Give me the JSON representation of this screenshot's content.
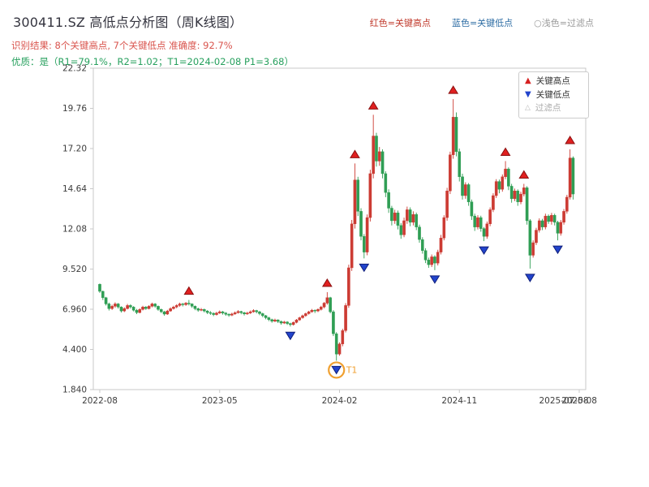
{
  "header": {
    "title": "300411.SZ 高低点分析图（周K线图）",
    "legend_high": "红色=关键高点",
    "legend_low": "蓝色=关键低点",
    "legend_filter": "○浅色=过滤点",
    "result_line": "识别结果: 8个关键高点, 7个关键低点   准确度: 92.7%",
    "quality_line": "优质：是（R1=79.1%，R2=1.02；T1=2024-02-08 P1=3.68）"
  },
  "plot_legend": {
    "high_label": "关键高点",
    "low_label": "关键低点",
    "filter_label": "过滤点"
  },
  "colors": {
    "up": "#cc3b33",
    "down": "#2f9e54",
    "marker_high": "#e02020",
    "marker_high_edge": "#8b1010",
    "marker_low": "#2244cc",
    "marker_low_edge": "#101f7a",
    "t1": "#f0a030",
    "axis_border": "#c9c9c9",
    "tick_text": "#3c3c3c",
    "title_text": "#34343f",
    "result_text": "#d9544d",
    "quality_text": "#27a05e"
  },
  "chart_data": {
    "type": "candlestick",
    "title": "300411.SZ 高低点分析图（周K线图）",
    "symbol": "300411.SZ",
    "timeframe": "weekly",
    "xlabel": "",
    "ylabel": "",
    "ylim": [
      1.84,
      22.32
    ],
    "y_ticks": [
      1.84,
      4.4,
      6.96,
      9.52,
      12.08,
      14.64,
      17.2,
      19.76,
      22.32
    ],
    "y_tick_labels": [
      "1.840",
      "4.400",
      "6.960",
      "9.520",
      "12.08",
      "14.64",
      "17.20",
      "19.76",
      "22.32"
    ],
    "x_tick_weeks": [
      0,
      39,
      78,
      117,
      156
    ],
    "x_tick_labels": [
      "2022-08",
      "2023-05",
      "2024-02",
      "2024-11",
      "2025-08"
    ],
    "x_extra_label": "2025-07-08",
    "legend_position": "upper-right-inside",
    "grid": false,
    "candles": [
      [
        8.55,
        8.6,
        8.0,
        8.1
      ],
      [
        8.1,
        8.15,
        7.55,
        7.7
      ],
      [
        7.7,
        7.75,
        7.2,
        7.3
      ],
      [
        7.3,
        7.38,
        6.88,
        7.0
      ],
      [
        7.0,
        7.25,
        6.92,
        7.15
      ],
      [
        7.15,
        7.4,
        7.05,
        7.3
      ],
      [
        7.3,
        7.36,
        7.0,
        7.1
      ],
      [
        7.1,
        7.15,
        6.75,
        6.85
      ],
      [
        6.85,
        7.08,
        6.78,
        7.0
      ],
      [
        7.0,
        7.3,
        6.95,
        7.2
      ],
      [
        7.2,
        7.28,
        7.0,
        7.1
      ],
      [
        7.1,
        7.16,
        6.82,
        6.9
      ],
      [
        6.9,
        6.98,
        6.65,
        6.75
      ],
      [
        6.75,
        7.02,
        6.7,
        6.95
      ],
      [
        6.95,
        7.18,
        6.88,
        7.1
      ],
      [
        7.1,
        7.16,
        6.92,
        7.0
      ],
      [
        7.0,
        7.22,
        6.95,
        7.15
      ],
      [
        7.15,
        7.38,
        7.08,
        7.3
      ],
      [
        7.3,
        7.35,
        7.06,
        7.15
      ],
      [
        7.15,
        7.2,
        6.86,
        6.95
      ],
      [
        6.95,
        7.0,
        6.72,
        6.8
      ],
      [
        6.8,
        6.86,
        6.55,
        6.65
      ],
      [
        6.65,
        6.92,
        6.6,
        6.85
      ],
      [
        6.85,
        7.08,
        6.8,
        7.0
      ],
      [
        7.0,
        7.18,
        6.94,
        7.1
      ],
      [
        7.1,
        7.28,
        7.02,
        7.2
      ],
      [
        7.2,
        7.38,
        7.12,
        7.3
      ],
      [
        7.3,
        7.36,
        7.14,
        7.25
      ],
      [
        7.25,
        7.42,
        7.18,
        7.35
      ],
      [
        7.35,
        7.55,
        7.2,
        7.3
      ],
      [
        7.3,
        7.34,
        7.05,
        7.15
      ],
      [
        7.15,
        7.2,
        6.9,
        7.0
      ],
      [
        7.0,
        7.06,
        6.8,
        6.9
      ],
      [
        6.9,
        7.04,
        6.84,
        6.95
      ],
      [
        6.95,
        7.0,
        6.76,
        6.85
      ],
      [
        6.85,
        6.9,
        6.65,
        6.75
      ],
      [
        6.75,
        6.84,
        6.6,
        6.7
      ],
      [
        6.7,
        6.76,
        6.52,
        6.62
      ],
      [
        6.62,
        6.8,
        6.56,
        6.72
      ],
      [
        6.72,
        6.88,
        6.66,
        6.8
      ],
      [
        6.8,
        6.85,
        6.62,
        6.72
      ],
      [
        6.72,
        6.78,
        6.54,
        6.64
      ],
      [
        6.64,
        6.7,
        6.48,
        6.58
      ],
      [
        6.58,
        6.74,
        6.52,
        6.66
      ],
      [
        6.66,
        6.82,
        6.6,
        6.74
      ],
      [
        6.74,
        6.9,
        6.68,
        6.82
      ],
      [
        6.82,
        6.86,
        6.64,
        6.74
      ],
      [
        6.74,
        6.8,
        6.56,
        6.66
      ],
      [
        6.66,
        6.8,
        6.6,
        6.72
      ],
      [
        6.72,
        6.88,
        6.66,
        6.8
      ],
      [
        6.8,
        6.96,
        6.74,
        6.88
      ],
      [
        6.88,
        6.92,
        6.7,
        6.8
      ],
      [
        6.8,
        6.85,
        6.58,
        6.68
      ],
      [
        6.68,
        6.74,
        6.45,
        6.55
      ],
      [
        6.55,
        6.6,
        6.32,
        6.42
      ],
      [
        6.42,
        6.48,
        6.2,
        6.3
      ],
      [
        6.3,
        6.36,
        6.1,
        6.2
      ],
      [
        6.2,
        6.36,
        6.14,
        6.28
      ],
      [
        6.28,
        6.32,
        6.08,
        6.18
      ],
      [
        6.18,
        6.24,
        5.98,
        6.08
      ],
      [
        6.08,
        6.22,
        6.02,
        6.15
      ],
      [
        6.15,
        6.2,
        5.96,
        6.05
      ],
      [
        6.05,
        6.1,
        5.86,
        5.98
      ],
      [
        5.98,
        6.18,
        5.92,
        6.12
      ],
      [
        6.12,
        6.34,
        6.06,
        6.28
      ],
      [
        6.28,
        6.48,
        6.22,
        6.42
      ],
      [
        6.42,
        6.62,
        6.36,
        6.55
      ],
      [
        6.55,
        6.74,
        6.48,
        6.68
      ],
      [
        6.68,
        6.86,
        6.62,
        6.8
      ],
      [
        6.8,
        6.98,
        6.74,
        6.9
      ],
      [
        6.9,
        6.95,
        6.72,
        6.85
      ],
      [
        6.85,
        7.02,
        6.78,
        6.95
      ],
      [
        6.95,
        7.18,
        6.88,
        7.1
      ],
      [
        7.1,
        7.42,
        7.02,
        7.35
      ],
      [
        7.35,
        8.05,
        7.25,
        7.7
      ],
      [
        7.7,
        7.75,
        6.7,
        6.8
      ],
      [
        6.8,
        6.9,
        5.25,
        5.4
      ],
      [
        5.4,
        5.5,
        3.68,
        4.1
      ],
      [
        4.1,
        4.85,
        4.0,
        4.75
      ],
      [
        4.75,
        5.72,
        4.6,
        5.6
      ],
      [
        5.6,
        7.35,
        5.48,
        7.2
      ],
      [
        7.2,
        9.8,
        7.05,
        9.6
      ],
      [
        9.6,
        12.65,
        9.4,
        12.4
      ],
      [
        12.4,
        16.25,
        12.1,
        15.2
      ],
      [
        15.2,
        15.4,
        12.9,
        13.2
      ],
      [
        13.2,
        13.4,
        11.35,
        11.6
      ],
      [
        11.6,
        11.75,
        10.2,
        10.6
      ],
      [
        10.6,
        13.0,
        10.4,
        12.8
      ],
      [
        12.8,
        15.85,
        12.55,
        15.6
      ],
      [
        15.6,
        19.35,
        15.3,
        18.0
      ],
      [
        18.0,
        18.2,
        16.05,
        16.4
      ],
      [
        16.4,
        17.3,
        16.1,
        17.0
      ],
      [
        17.0,
        17.15,
        15.3,
        15.6
      ],
      [
        15.6,
        15.75,
        14.1,
        14.4
      ],
      [
        14.4,
        14.6,
        13.1,
        13.4
      ],
      [
        13.4,
        13.55,
        12.3,
        12.6
      ],
      [
        12.6,
        13.3,
        12.4,
        13.1
      ],
      [
        13.1,
        13.25,
        12.05,
        12.3
      ],
      [
        12.3,
        12.45,
        11.45,
        11.7
      ],
      [
        11.7,
        12.8,
        11.55,
        12.6
      ],
      [
        12.6,
        13.5,
        12.4,
        13.3
      ],
      [
        13.3,
        13.45,
        12.25,
        12.5
      ],
      [
        12.5,
        13.2,
        12.3,
        13.0
      ],
      [
        13.0,
        13.12,
        12.0,
        12.2
      ],
      [
        12.2,
        12.35,
        11.2,
        11.4
      ],
      [
        11.4,
        11.55,
        10.5,
        10.7
      ],
      [
        10.7,
        10.85,
        9.9,
        10.1
      ],
      [
        10.1,
        10.25,
        9.6,
        9.8
      ],
      [
        9.8,
        10.45,
        9.65,
        10.3
      ],
      [
        10.3,
        10.4,
        9.45,
        9.9
      ],
      [
        9.9,
        10.75,
        9.75,
        10.6
      ],
      [
        10.6,
        11.7,
        10.45,
        11.5
      ],
      [
        11.5,
        12.95,
        11.35,
        12.8
      ],
      [
        12.8,
        14.7,
        12.6,
        14.5
      ],
      [
        14.5,
        17.0,
        14.3,
        16.8
      ],
      [
        16.8,
        20.35,
        16.55,
        19.2
      ],
      [
        19.2,
        19.5,
        16.7,
        17.0
      ],
      [
        17.0,
        17.2,
        15.1,
        15.4
      ],
      [
        15.4,
        15.6,
        13.95,
        14.2
      ],
      [
        14.2,
        15.05,
        14.0,
        14.9
      ],
      [
        14.9,
        15.0,
        13.55,
        13.8
      ],
      [
        13.8,
        13.95,
        12.65,
        12.9
      ],
      [
        12.9,
        13.05,
        11.95,
        12.2
      ],
      [
        12.2,
        12.95,
        12.05,
        12.8
      ],
      [
        12.8,
        12.92,
        11.9,
        12.1
      ],
      [
        12.1,
        12.2,
        11.3,
        11.6
      ],
      [
        11.6,
        12.55,
        11.45,
        12.4
      ],
      [
        12.4,
        13.45,
        12.25,
        13.3
      ],
      [
        13.3,
        14.35,
        13.15,
        14.2
      ],
      [
        14.2,
        15.25,
        14.05,
        15.1
      ],
      [
        15.1,
        15.22,
        14.35,
        14.6
      ],
      [
        14.6,
        15.55,
        14.45,
        15.4
      ],
      [
        15.4,
        16.4,
        15.25,
        15.9
      ],
      [
        15.9,
        16.0,
        14.55,
        14.8
      ],
      [
        14.8,
        14.95,
        13.75,
        14.0
      ],
      [
        14.0,
        14.65,
        13.85,
        14.5
      ],
      [
        14.5,
        14.6,
        13.55,
        13.8
      ],
      [
        13.8,
        14.45,
        13.65,
        14.3
      ],
      [
        14.3,
        14.95,
        14.15,
        14.7
      ],
      [
        14.7,
        14.8,
        12.35,
        12.6
      ],
      [
        12.6,
        12.7,
        9.55,
        10.4
      ],
      [
        10.4,
        11.35,
        10.25,
        11.2
      ],
      [
        11.2,
        12.15,
        11.05,
        12.0
      ],
      [
        12.0,
        12.75,
        11.85,
        12.6
      ],
      [
        12.6,
        12.72,
        12.0,
        12.2
      ],
      [
        12.2,
        13.05,
        12.05,
        12.9
      ],
      [
        12.9,
        13.0,
        12.4,
        12.55
      ],
      [
        12.55,
        13.1,
        12.35,
        12.95
      ],
      [
        12.95,
        13.05,
        12.3,
        12.5
      ],
      [
        12.5,
        12.6,
        11.35,
        11.8
      ],
      [
        11.8,
        12.65,
        11.65,
        12.5
      ],
      [
        12.5,
        13.35,
        12.35,
        13.2
      ],
      [
        13.2,
        14.25,
        13.05,
        14.1
      ],
      [
        14.1,
        17.15,
        13.95,
        16.6
      ],
      [
        16.6,
        16.7,
        13.95,
        14.3
      ]
    ],
    "key_highs": [
      {
        "week": 29,
        "price": 7.55
      },
      {
        "week": 74,
        "price": 8.05
      },
      {
        "week": 83,
        "price": 16.25
      },
      {
        "week": 89,
        "price": 19.35
      },
      {
        "week": 115,
        "price": 20.35
      },
      {
        "week": 132,
        "price": 16.4
      },
      {
        "week": 138,
        "price": 14.95
      },
      {
        "week": 153,
        "price": 17.15
      }
    ],
    "key_lows": [
      {
        "week": 62,
        "price": 5.86
      },
      {
        "week": 77,
        "price": 3.68,
        "label": "T1",
        "circled": true
      },
      {
        "week": 86,
        "price": 10.2
      },
      {
        "week": 109,
        "price": 9.45
      },
      {
        "week": 125,
        "price": 11.3
      },
      {
        "week": 140,
        "price": 9.55
      },
      {
        "week": 149,
        "price": 11.35
      }
    ],
    "t1_annotation": {
      "label": "T1",
      "date": "2024-02-08",
      "price": 3.68
    }
  }
}
